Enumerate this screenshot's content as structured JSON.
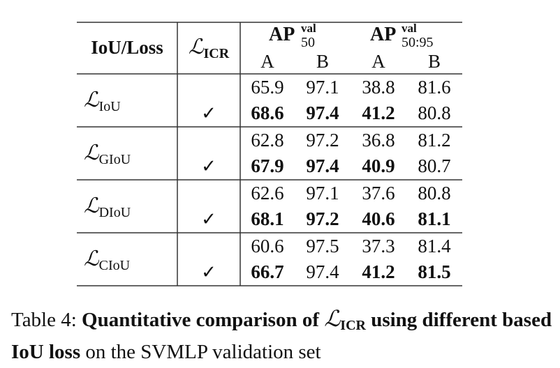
{
  "table": {
    "headers": {
      "col1": "IoU/Loss",
      "col2_symbol": "ℒ",
      "col2_subscript": "ICR",
      "ap50_main": "AP",
      "ap50_sup": "val",
      "ap50_sub": "50",
      "ap5095_main": "AP",
      "ap5095_sup": "val",
      "ap5095_sub": "50:95",
      "subheaders": [
        "A",
        "B",
        "A",
        "B"
      ]
    },
    "groups": [
      {
        "loss_symbol": "ℒ",
        "loss_subscript": "IoU",
        "rows": [
          {
            "icr": "",
            "values": [
              "65.9",
              "97.1",
              "38.8",
              "81.6"
            ],
            "bold": [
              false,
              false,
              false,
              false
            ]
          },
          {
            "icr": "✓",
            "values": [
              "68.6",
              "97.4",
              "41.2",
              "80.8"
            ],
            "bold": [
              true,
              true,
              true,
              false
            ]
          }
        ]
      },
      {
        "loss_symbol": "ℒ",
        "loss_subscript": "GIoU",
        "rows": [
          {
            "icr": "",
            "values": [
              "62.8",
              "97.2",
              "36.8",
              "81.2"
            ],
            "bold": [
              false,
              false,
              false,
              false
            ]
          },
          {
            "icr": "✓",
            "values": [
              "67.9",
              "97.4",
              "40.9",
              "80.7"
            ],
            "bold": [
              true,
              true,
              true,
              false
            ]
          }
        ]
      },
      {
        "loss_symbol": "ℒ",
        "loss_subscript": "DIoU",
        "rows": [
          {
            "icr": "",
            "values": [
              "62.6",
              "97.1",
              "37.6",
              "80.8"
            ],
            "bold": [
              false,
              false,
              false,
              false
            ]
          },
          {
            "icr": "✓",
            "values": [
              "68.1",
              "97.2",
              "40.6",
              "81.1"
            ],
            "bold": [
              true,
              true,
              true,
              true
            ]
          }
        ]
      },
      {
        "loss_symbol": "ℒ",
        "loss_subscript": "CIoU",
        "rows": [
          {
            "icr": "",
            "values": [
              "60.6",
              "97.5",
              "37.3",
              "81.4"
            ],
            "bold": [
              false,
              false,
              false,
              false
            ]
          },
          {
            "icr": "✓",
            "values": [
              "66.7",
              "97.4",
              "41.2",
              "81.5"
            ],
            "bold": [
              true,
              false,
              true,
              true
            ]
          }
        ]
      }
    ]
  },
  "caption": {
    "prefix": "Table 4: ",
    "bold_part1": "Quantitative comparison of ",
    "symbol": "ℒ",
    "symbol_subscript": "ICR",
    "bold_part2": " using different based IoU loss",
    "rest": " on the SVMLP validation set"
  },
  "colors": {
    "ink": "#111111",
    "rule": "#333333",
    "background": "#ffffff"
  }
}
